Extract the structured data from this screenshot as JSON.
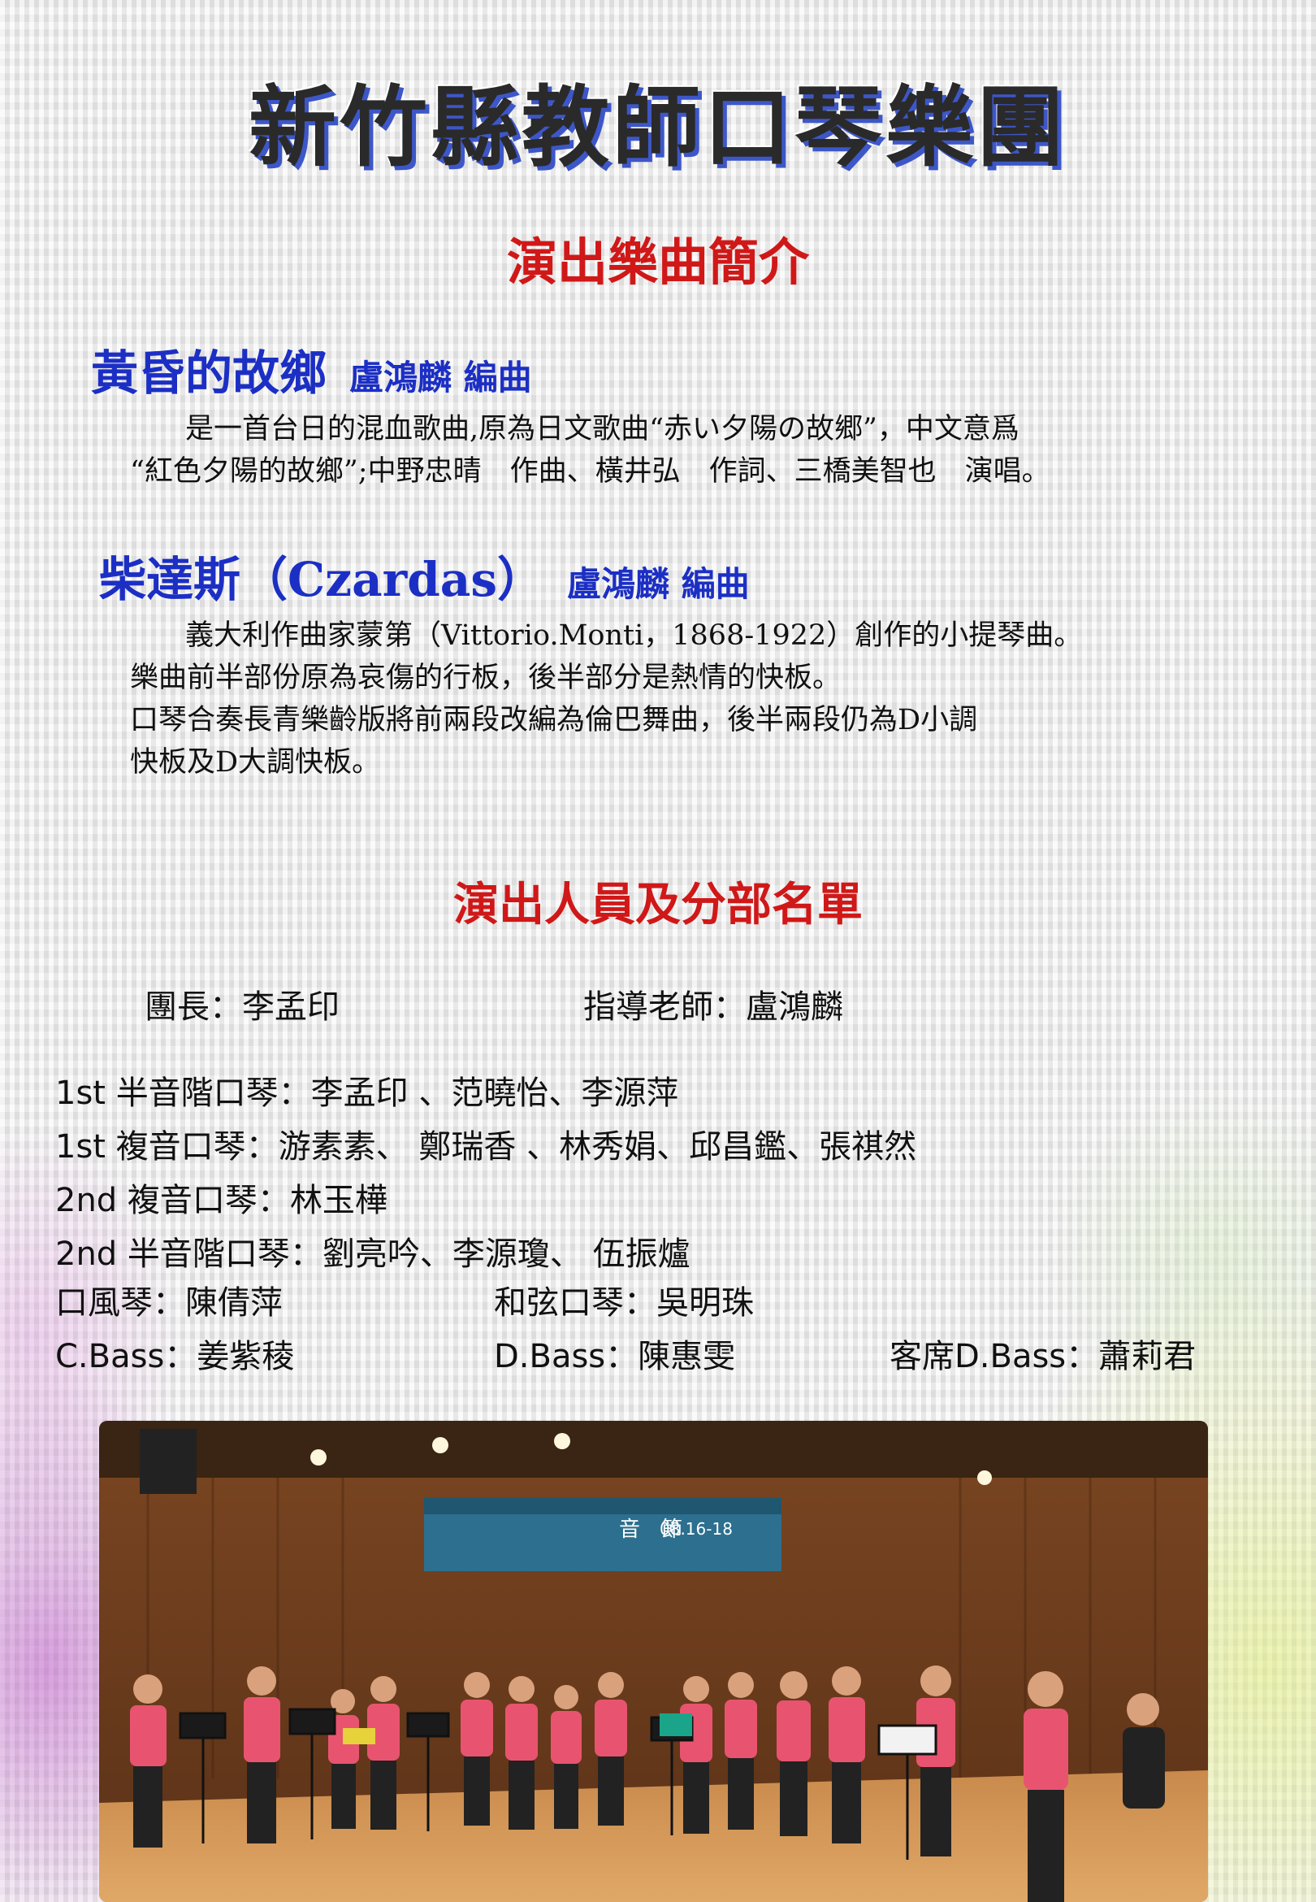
{
  "main_title": "新竹縣教師口琴樂團",
  "section1_heading": "演出樂曲簡介",
  "songs": [
    {
      "title": "黃昏的故鄉",
      "arranger": "盧鴻麟 編曲",
      "lines": [
        "是一首台日的混血歌曲,原為日文歌曲“赤い夕陽の故郷”，中文意爲",
        "“紅色夕陽的故鄉”;中野忠晴　作曲、橫井弘　作詞、三橋美智也　演唱。"
      ]
    },
    {
      "title": "柴達斯（Czardas）",
      "arranger": "盧鴻麟 編曲",
      "lines": [
        "義大利作曲家蒙第（Vittorio.Monti，1868-1922）創作的小提琴曲。",
        "樂曲前半部份原為哀傷的行板，後半部分是熱情的快板。",
        "口琴合奏長青樂齡版將前兩段改編為倫巴舞曲，後半兩段仍為D小調",
        "快板及D大調快板。"
      ]
    }
  ],
  "section2_heading": "演出人員及分部名單",
  "leaders": {
    "head": "團長：李孟印",
    "teacher": "指導老師：盧鴻麟"
  },
  "roster": [
    "1st 半音階口琴：李孟印 、范曉怡、李源萍",
    "1st 複音口琴：游素素、 鄭瑞香 、林秀娟、邱昌鑑、張祺然",
    "2nd 複音口琴：林玉樺",
    "2nd 半音階口琴：劉亮吟、李源瓊、 伍振爐"
  ],
  "roster_row5": [
    "口風琴：陳倩萍",
    "和弦口琴：吳明珠"
  ],
  "roster_row6": [
    "C.Bass：姜紫稜",
    "D.Bass：陳惠雯",
    "客席D.Bass：蕭莉君"
  ],
  "photo": {
    "banner_text": "音　節",
    "banner_date": "08.16-18",
    "colors": {
      "wood_dark": "#6b3b1c",
      "wood_mid": "#9a5a2c",
      "floor": "#c9884a",
      "banner": "#2c6f8e",
      "shirt": "#e8546f"
    }
  }
}
